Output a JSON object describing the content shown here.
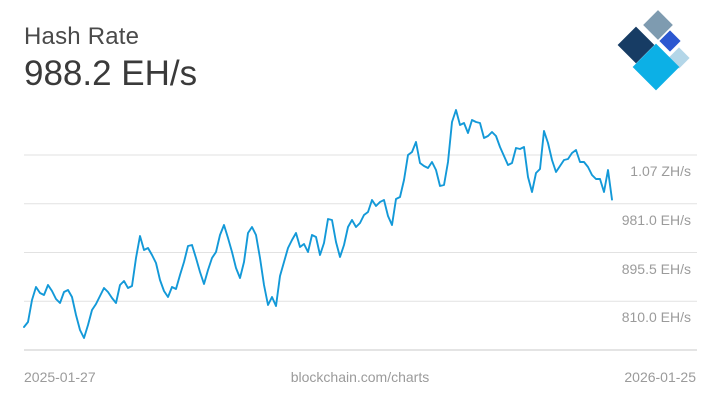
{
  "header": {
    "title": "Hash Rate",
    "current_value": "988.2 EH/s"
  },
  "logo": {
    "name": "blockchain-logo",
    "colors": {
      "slate": "#7e9bb0",
      "navy": "#173c64",
      "cyan": "#0cb0e6",
      "royal": "#2b57d0",
      "pale": "#b3d6e8"
    }
  },
  "footer": {
    "start_date": "2025-01-27",
    "source": "blockchain.com/charts",
    "end_date": "2026-01-25"
  },
  "chart_data": {
    "type": "line",
    "title": "Hash Rate",
    "current_value": "988.2 EH/s",
    "unit": "EH/s",
    "x_start": "2025-01-27",
    "x_end": "2026-01-25",
    "line_color": "#1399d8",
    "grid": true,
    "legend": "none",
    "y_axis": {
      "side": "right",
      "tick_labels": [
        "1.07 ZH/s",
        "981.0 EH/s",
        "895.5 EH/s",
        "810.0 EH/s"
      ],
      "tick_values": [
        1066.5,
        981.0,
        895.5,
        810.0
      ],
      "baseline_value": 724.5,
      "ylim": [
        724.5,
        1163
      ]
    },
    "values": [
      764.8,
      773.6,
      812.2,
      835.0,
      824.5,
      821.0,
      838.5,
      828.0,
      814.0,
      806.9,
      826.2,
      829.7,
      817.5,
      785.9,
      759.6,
      745.5,
      768.4,
      794.7,
      805.2,
      819.2,
      833.2,
      826.2,
      815.7,
      806.9,
      838.5,
      845.5,
      833.2,
      836.8,
      885.9,
      924.5,
      899.9,
      903.4,
      891.1,
      877.1,
      847.3,
      828.0,
      817.5,
      835.0,
      831.5,
      856.1,
      878.9,
      906.9,
      908.7,
      885.9,
      861.3,
      840.3,
      864.8,
      885.9,
      896.4,
      926.2,
      943.8,
      920.9,
      896.4,
      868.3,
      850.8,
      878.9,
      929.7,
      940.2,
      926.2,
      885.9,
      838.5,
      803.4,
      817.5,
      801.7,
      854.3,
      878.9,
      903.4,
      917.4,
      929.7,
      905.2,
      910.4,
      896.4,
      926.2,
      922.7,
      891.1,
      912.2,
      954.3,
      952.5,
      913.9,
      887.6,
      908.7,
      940.2,
      952.5,
      940.2,
      947.3,
      961.3,
      966.5,
      987.6,
      977.1,
      984.1,
      987.6,
      959.5,
      943.8,
      989.4,
      992.9,
      1022.7,
      1066.5,
      1071.8,
      1089.3,
      1052.5,
      1047.2,
      1043.7,
      1054.3,
      1040.2,
      1012.2,
      1013.9,
      1054.3,
      1124.4,
      1145.5,
      1119.2,
      1122.7,
      1105.1,
      1127.9,
      1124.4,
      1122.7,
      1096.3,
      1099.9,
      1106.9,
      1099.9,
      1080.6,
      1064.8,
      1049.0,
      1052.5,
      1078.8,
      1077.1,
      1080.6,
      1027.9,
      1001.6,
      1035.0,
      1042.0,
      1108.6,
      1087.6,
      1057.8,
      1036.7,
      1047.2,
      1057.8,
      1059.5,
      1070.0,
      1075.3,
      1054.3,
      1054.3,
      1045.5,
      1031.5,
      1024.4,
      1024.4,
      1001.6,
      1040.2,
      988.2
    ]
  }
}
